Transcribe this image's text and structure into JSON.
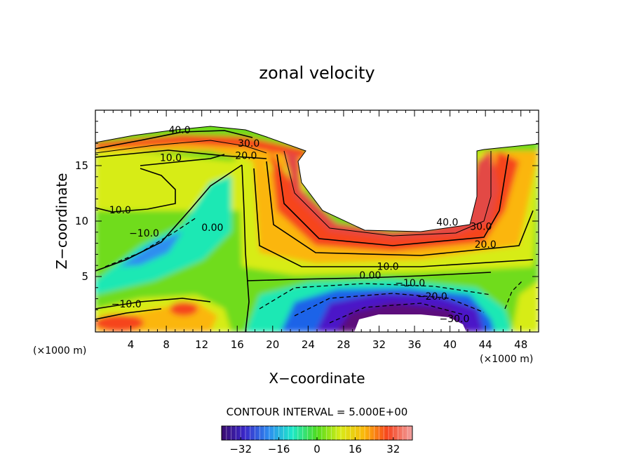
{
  "chart_data": {
    "type": "contour",
    "title": "zonal velocity",
    "xlabel": "X−coordinate",
    "ylabel": "Z−coordinate",
    "x_units_left": "(×1000 m)",
    "x_units_right": "(×1000 m)",
    "xlim": [
      0,
      50
    ],
    "ylim": [
      0,
      20
    ],
    "x_ticks": [
      4,
      8,
      12,
      16,
      20,
      24,
      28,
      32,
      36,
      40,
      44,
      48
    ],
    "x_tick_labels": [
      "4",
      "8",
      "12",
      "16",
      "20",
      "24",
      "28",
      "32",
      "36",
      "40",
      "44",
      "48"
    ],
    "y_ticks": [
      5,
      10,
      15
    ],
    "y_tick_labels": [
      "5",
      "10",
      "15"
    ],
    "contour_interval_text": "CONTOUR INTERVAL = 5.000E+00",
    "contour_interval": 5.0,
    "contour_labels": [
      {
        "text": "40.0",
        "x": 9.5,
        "z": 17.9
      },
      {
        "text": "30.0",
        "x": 17.3,
        "z": 16.7
      },
      {
        "text": "20.0",
        "x": 17.0,
        "z": 15.6
      },
      {
        "text": "10.0",
        "x": 8.5,
        "z": 15.4
      },
      {
        "text": "10.0",
        "x": 2.8,
        "z": 10.7
      },
      {
        "text": "−10.0",
        "x": 5.5,
        "z": 8.6
      },
      {
        "text": "0.00",
        "x": 13.2,
        "z": 9.1
      },
      {
        "text": "−10.0",
        "x": 3.5,
        "z": 2.2
      },
      {
        "text": "40.0",
        "x": 39.7,
        "z": 9.6
      },
      {
        "text": "30.0",
        "x": 43.5,
        "z": 9.2
      },
      {
        "text": "20.0",
        "x": 44.0,
        "z": 7.6
      },
      {
        "text": "10.0",
        "x": 33.0,
        "z": 5.6
      },
      {
        "text": "0.00",
        "x": 31.0,
        "z": 4.8
      },
      {
        "text": "−10.0",
        "x": 35.5,
        "z": 4.1
      },
      {
        "text": "−20.0",
        "x": 38.0,
        "z": 2.9
      },
      {
        "text": "−30.0",
        "x": 40.5,
        "z": 0.9
      }
    ],
    "colorbar": {
      "range": [
        -40,
        40
      ],
      "ticks": [
        -32,
        -16,
        0,
        16,
        32
      ],
      "tick_labels": [
        "−32",
        "−16",
        "0",
        "16",
        "32"
      ]
    },
    "colors": {
      "c40": "#e34a44",
      "c30": "#f6441f",
      "c20": "#fbb60a",
      "c10": "#d7ec17",
      "c0": "#6fdc1d",
      "cm10": "#1ce8b4",
      "cm20": "#1e63e8",
      "cm30": "#4b17c8",
      "cm40": "#5b0f7c"
    }
  }
}
